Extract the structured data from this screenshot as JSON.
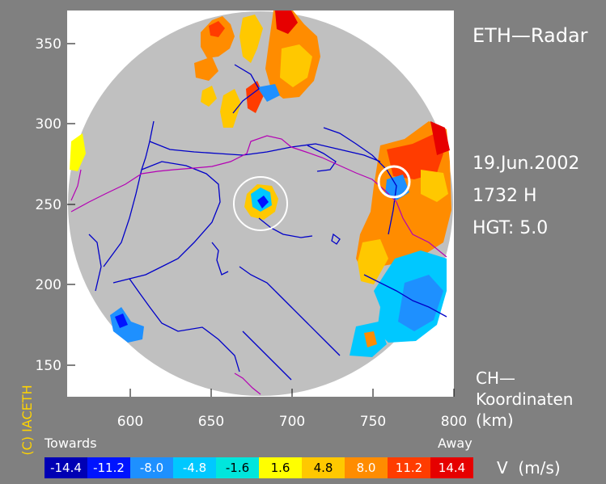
{
  "header": {
    "title": "ETH—Radar",
    "date": "19.Jun.2002",
    "time": "1732 H",
    "height": "HGT: 5.0"
  },
  "coordinates_note": {
    "line1": "CH—",
    "line2": "Koordinaten",
    "unit": "(km)"
  },
  "axes": {
    "x_ticks": [
      "600",
      "650",
      "700",
      "750",
      "800"
    ],
    "y_ticks": [
      "350",
      "300",
      "250",
      "200",
      "150"
    ]
  },
  "legend": {
    "left_label": "Towards",
    "right_label": "Away",
    "unit_label": "V  (m/s)",
    "bins": [
      {
        "label": "-14.4",
        "color": "#0000b4"
      },
      {
        "label": "-11.2",
        "color": "#0014ff"
      },
      {
        "label": "-8.0",
        "color": "#1e90ff"
      },
      {
        "label": "-4.8",
        "color": "#00c8ff"
      },
      {
        "label": "-1.6",
        "color": "#00e6dc"
      },
      {
        "label": "1.6",
        "color": "#ffff00"
      },
      {
        "label": "4.8",
        "color": "#ffc800"
      },
      {
        "label": "8.0",
        "color": "#ff8c00"
      },
      {
        "label": "11.2",
        "color": "#ff3c00"
      },
      {
        "label": "14.4",
        "color": "#e60000"
      }
    ]
  },
  "credit": "(C) IACETH",
  "colors": {
    "background": "#808080",
    "plot_area": "#ffffff",
    "radar_disc": "#c0c0c0",
    "rivers": "#0000c8",
    "borders": "#b400b4",
    "highlight_circle": "#ffffff"
  }
}
